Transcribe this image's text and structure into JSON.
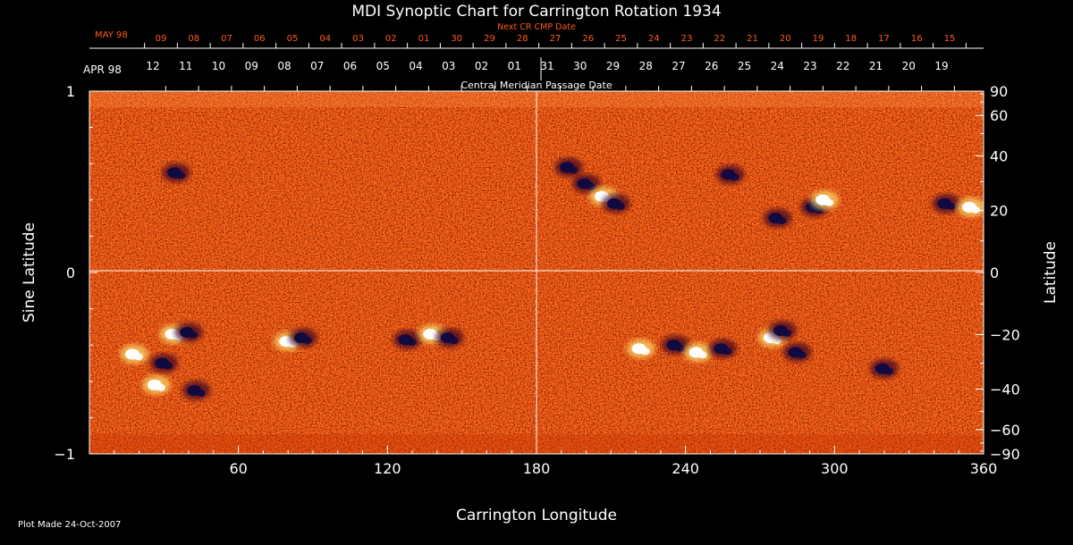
{
  "chart_data": {
    "type": "heatmap",
    "title": "MDI Synoptic Chart for Carrington Rotation 1934",
    "xlabel": "Carrington Longitude",
    "ylabel_left": "Sine Latitude",
    "ylabel_right": "Latitude",
    "x_range": [
      0,
      360
    ],
    "y_range": [
      -1,
      1
    ],
    "x_ticks": [
      "60",
      "120",
      "180",
      "240",
      "300",
      "360"
    ],
    "x_tick_values": [
      60,
      120,
      180,
      240,
      300,
      360
    ],
    "y_left_ticks": [
      "1",
      "0",
      "−1"
    ],
    "y_left_tick_values": [
      1,
      0,
      -1
    ],
    "y_right_ticks": [
      "90",
      "60",
      "40",
      "20",
      "0",
      "−20",
      "−40",
      "−60",
      "−90"
    ],
    "y_right_tick_values": [
      90,
      60,
      40,
      20,
      0,
      -20,
      -40,
      -60,
      -90
    ],
    "top_axis_caption": "Central Meridian Passage Date",
    "top_axis_month": "APR 98",
    "top_axis_dates": [
      "12",
      "11",
      "10",
      "09",
      "08",
      "07",
      "06",
      "05",
      "04",
      "03",
      "02",
      "01",
      "31",
      "30",
      "29",
      "28",
      "27",
      "26",
      "25",
      "24",
      "23",
      "22",
      "21",
      "20",
      "19"
    ],
    "next_cr_caption": "Next CR CMP Date",
    "next_cr_month": "MAY 98",
    "next_cr_dates": [
      "09",
      "08",
      "07",
      "06",
      "05",
      "04",
      "03",
      "02",
      "01",
      "30",
      "29",
      "28",
      "27",
      "26",
      "25",
      "24",
      "23",
      "22",
      "21",
      "20",
      "19",
      "18",
      "17",
      "16",
      "15"
    ],
    "regions": [
      {
        "lon": 18,
        "lat": -0.45,
        "polarity": "positive"
      },
      {
        "lon": 30,
        "lat": -0.5,
        "polarity": "negative"
      },
      {
        "lon": 34,
        "lat": -0.34,
        "polarity": "positive"
      },
      {
        "lon": 40,
        "lat": -0.33,
        "polarity": "negative"
      },
      {
        "lon": 27,
        "lat": -0.62,
        "polarity": "positive"
      },
      {
        "lon": 43,
        "lat": -0.65,
        "polarity": "negative"
      },
      {
        "lon": 35,
        "lat": 0.55,
        "polarity": "negative"
      },
      {
        "lon": 80,
        "lat": -0.38,
        "polarity": "positive"
      },
      {
        "lon": 86,
        "lat": -0.36,
        "polarity": "negative"
      },
      {
        "lon": 128,
        "lat": -0.37,
        "polarity": "negative"
      },
      {
        "lon": 138,
        "lat": -0.34,
        "polarity": "positive"
      },
      {
        "lon": 145,
        "lat": -0.36,
        "polarity": "negative"
      },
      {
        "lon": 193,
        "lat": 0.58,
        "polarity": "negative"
      },
      {
        "lon": 200,
        "lat": 0.49,
        "polarity": "negative"
      },
      {
        "lon": 207,
        "lat": 0.42,
        "polarity": "positive"
      },
      {
        "lon": 212,
        "lat": 0.38,
        "polarity": "negative"
      },
      {
        "lon": 222,
        "lat": -0.42,
        "polarity": "positive"
      },
      {
        "lon": 236,
        "lat": -0.4,
        "polarity": "negative"
      },
      {
        "lon": 245,
        "lat": -0.44,
        "polarity": "positive"
      },
      {
        "lon": 255,
        "lat": -0.42,
        "polarity": "negative"
      },
      {
        "lon": 258,
        "lat": 0.54,
        "polarity": "negative"
      },
      {
        "lon": 275,
        "lat": -0.36,
        "polarity": "positive"
      },
      {
        "lon": 279,
        "lat": -0.32,
        "polarity": "negative"
      },
      {
        "lon": 285,
        "lat": -0.44,
        "polarity": "negative"
      },
      {
        "lon": 277,
        "lat": 0.3,
        "polarity": "negative"
      },
      {
        "lon": 292,
        "lat": 0.36,
        "polarity": "negative"
      },
      {
        "lon": 296,
        "lat": 0.4,
        "polarity": "positive"
      },
      {
        "lon": 320,
        "lat": -0.53,
        "polarity": "negative"
      },
      {
        "lon": 345,
        "lat": 0.38,
        "polarity": "negative"
      },
      {
        "lon": 355,
        "lat": 0.36,
        "polarity": "positive"
      }
    ]
  },
  "footer": {
    "plot_made": "Plot Made 24-Oct-2007"
  }
}
